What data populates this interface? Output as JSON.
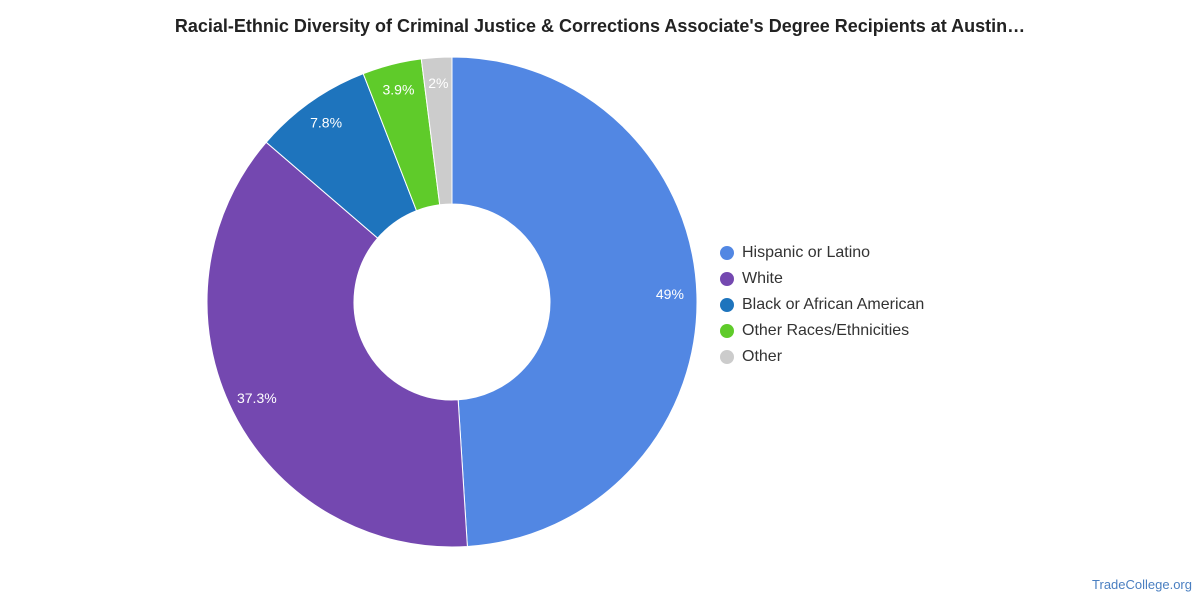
{
  "title": "Racial-Ethnic Diversity of Criminal Justice & Corrections Associate's Degree Recipients at Austin…",
  "source": "TradeCollege.org",
  "chart_data": {
    "type": "pie",
    "donut": true,
    "title": "Racial-Ethnic Diversity of Criminal Justice & Corrections Associate's Degree Recipients at Austin…",
    "legend_position": "right",
    "slices": [
      {
        "name": "Hispanic or Latino",
        "value": 49,
        "label": "49%",
        "color": "#5287e3"
      },
      {
        "name": "White",
        "value": 37.3,
        "label": "37.3%",
        "color": "#7448b0"
      },
      {
        "name": "Black or African American",
        "value": 7.8,
        "label": "7.8%",
        "color": "#1e74bd"
      },
      {
        "name": "Other Races/Ethnicities",
        "value": 3.9,
        "label": "3.9%",
        "color": "#5fcb2a"
      },
      {
        "name": "Other",
        "value": 2,
        "label": "2%",
        "color": "#cccccc"
      }
    ]
  }
}
